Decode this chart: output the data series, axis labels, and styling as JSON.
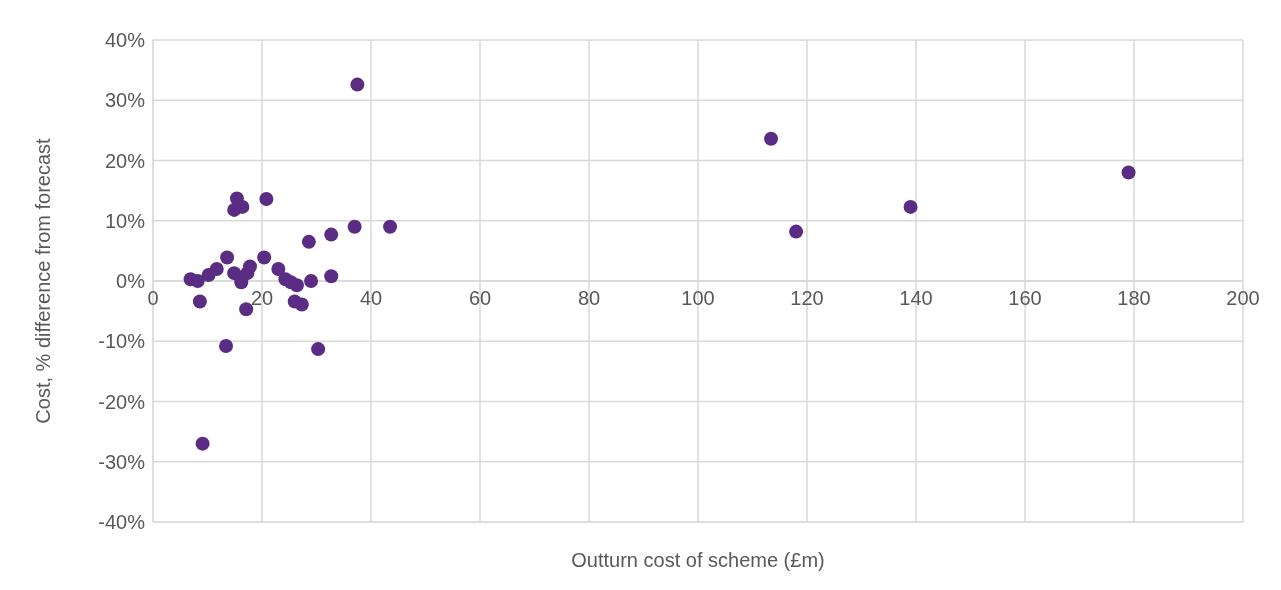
{
  "chart_data": {
    "type": "scatter",
    "xlabel": "Outturn cost of scheme (£m)",
    "ylabel": "Cost, % difference from forecast",
    "x": [
      6.9,
      8.2,
      8.6,
      10.2,
      11.7,
      13.6,
      14.9,
      16.2,
      17.3,
      17.8,
      15.4,
      14.9,
      16.4,
      20.8,
      20.4,
      23.0,
      24.3,
      25.3,
      26.4,
      26.0,
      27.3,
      29.0,
      32.7,
      28.6,
      32.7,
      37.0,
      43.5,
      17.1,
      13.4,
      30.3,
      9.1,
      37.5,
      113.4,
      118.0,
      139.0,
      179.0
    ],
    "values": [
      0.3,
      0,
      -3.4,
      1,
      2,
      3.9,
      1.3,
      -0.2,
      1.3,
      2.4,
      13.7,
      11.8,
      12.3,
      13.6,
      3.9,
      2,
      0.3,
      -0.2,
      -0.7,
      -3.4,
      -3.9,
      0,
      0.8,
      6.5,
      7.7,
      9,
      9,
      -4.7,
      -10.8,
      -11.3,
      -27,
      32.6,
      23.6,
      8.2,
      12.3,
      18
    ],
    "color": "#5b2c83",
    "marker": "circle",
    "xlim": [
      0,
      200
    ],
    "xticks": [
      0,
      20,
      40,
      60,
      80,
      100,
      120,
      140,
      160,
      180,
      200
    ],
    "ylim": [
      -40,
      40
    ],
    "yticks": [
      {
        "value": -40,
        "label": "-40%"
      },
      {
        "value": -30,
        "label": "-30%"
      },
      {
        "value": -20,
        "label": "-20%"
      },
      {
        "value": -10,
        "label": "-10%"
      },
      {
        "value": 0,
        "label": "0%"
      },
      {
        "value": 10,
        "label": "10%"
      },
      {
        "value": 20,
        "label": "20%"
      },
      {
        "value": 30,
        "label": "30%"
      },
      {
        "value": 40,
        "label": "40%"
      }
    ],
    "grid": true
  }
}
